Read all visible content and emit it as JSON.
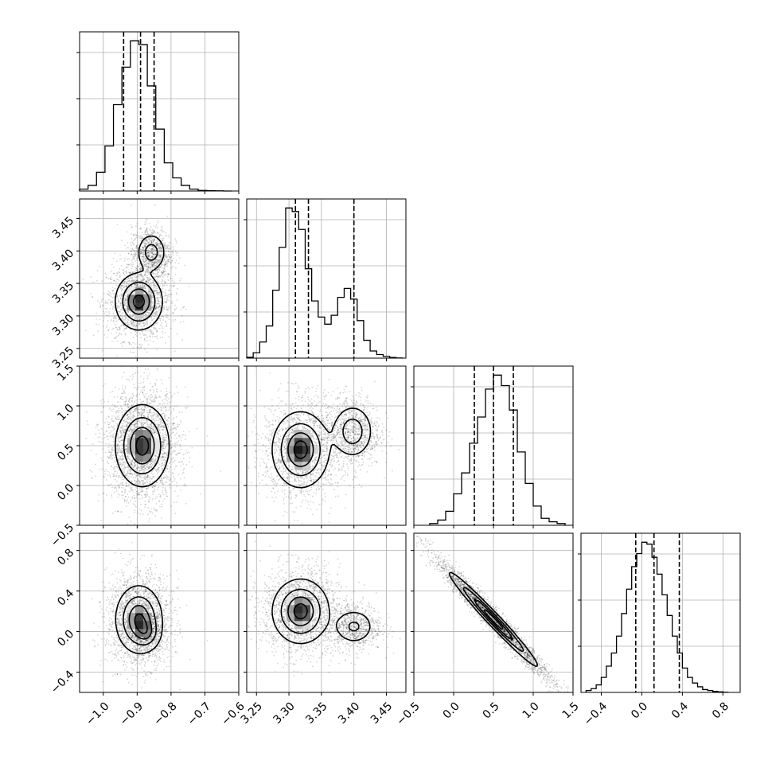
{
  "chart_data": {
    "type": "corner",
    "parameters": [
      {
        "index": 0,
        "range": [
          -1.07,
          -0.6
        ],
        "ticks": [
          -1.0,
          -0.9,
          -0.8,
          -0.7,
          -0.6
        ],
        "tick_labels": [
          "−1.0",
          "−0.9",
          "−0.8",
          "−0.7",
          "−0.6"
        ],
        "quantiles": [
          -0.94,
          -0.89,
          -0.85
        ],
        "histogram": {
          "bin_edges": [
            -1.07,
            -1.045,
            -1.02,
            -0.995,
            -0.97,
            -0.945,
            -0.92,
            -0.895,
            -0.87,
            -0.845,
            -0.82,
            -0.795,
            -0.77,
            -0.745,
            -0.72,
            -0.695,
            -0.67,
            -0.645,
            -0.62
          ],
          "counts": [
            1,
            3,
            10,
            24,
            46,
            66,
            80,
            78,
            56,
            33,
            15,
            7,
            3,
            1,
            0.3,
            0.2,
            0.1,
            0
          ]
        }
      },
      {
        "index": 1,
        "range": [
          3.235,
          3.48
        ],
        "ticks": [
          3.25,
          3.3,
          3.35,
          3.4,
          3.45
        ],
        "tick_labels": [
          "3.25",
          "3.30",
          "3.35",
          "3.40",
          "3.45"
        ],
        "quantiles": [
          3.31,
          3.33,
          3.4
        ],
        "histogram": {
          "bin_edges": [
            3.235,
            3.245,
            3.255,
            3.265,
            3.275,
            3.285,
            3.295,
            3.305,
            3.315,
            3.325,
            3.335,
            3.345,
            3.355,
            3.365,
            3.375,
            3.385,
            3.395,
            3.405,
            3.415,
            3.425,
            3.435,
            3.445,
            3.455,
            3.465,
            3.475
          ],
          "counts": [
            0.5,
            3,
            9,
            18,
            38,
            62,
            84,
            82,
            72,
            50,
            32,
            23,
            19,
            24,
            34,
            39,
            33,
            21,
            10,
            4,
            2,
            1,
            0.4,
            0.1
          ]
        }
      },
      {
        "index": 2,
        "range": [
          -0.5,
          1.5
        ],
        "ticks": [
          -0.5,
          0.0,
          0.5,
          1.0,
          1.5
        ],
        "tick_labels": [
          "−0.5",
          "0.0",
          "0.5",
          "1.0",
          "1.5"
        ],
        "quantiles": [
          0.26,
          0.5,
          0.75
        ],
        "histogram": {
          "bin_edges": [
            -0.3,
            -0.2,
            -0.1,
            0.0,
            0.1,
            0.2,
            0.3,
            0.4,
            0.5,
            0.6,
            0.7,
            0.8,
            0.9,
            1.0,
            1.1,
            1.2,
            1.3,
            1.4
          ],
          "counts": [
            1,
            3,
            8,
            18,
            30,
            47,
            62,
            78,
            86,
            80,
            66,
            42,
            24,
            11,
            4,
            2,
            1
          ]
        }
      },
      {
        "index": 3,
        "range": [
          -0.6,
          0.97
        ],
        "ticks": [
          -0.4,
          0.0,
          0.4,
          0.8
        ],
        "tick_labels": [
          "−0.4",
          "0.0",
          "0.4",
          "0.8"
        ],
        "quantiles": [
          -0.06,
          0.12,
          0.37
        ],
        "histogram": {
          "bin_edges": [
            -0.55,
            -0.5,
            -0.45,
            -0.4,
            -0.35,
            -0.3,
            -0.25,
            -0.2,
            -0.15,
            -0.1,
            -0.05,
            0.0,
            0.05,
            0.1,
            0.15,
            0.2,
            0.25,
            0.3,
            0.35,
            0.4,
            0.45,
            0.5,
            0.55,
            0.6,
            0.65,
            0.7,
            0.75,
            0.8,
            0.85
          ],
          "counts": [
            1,
            2,
            4,
            8,
            14,
            21,
            30,
            42,
            55,
            67,
            74,
            80,
            79,
            72,
            63,
            52,
            41,
            30,
            21,
            13,
            8,
            5,
            3,
            1.5,
            1,
            0.5,
            0.3,
            0.1
          ]
        }
      }
    ],
    "pairs": [
      {
        "row": 1,
        "col": 0,
        "clusters": [
          {
            "center": [
              -0.895,
              3.322
            ],
            "sigma": [
              0.035,
              0.022
            ],
            "weight": 1.0
          },
          {
            "center": [
              -0.858,
              3.398
            ],
            "sigma": [
              0.022,
              0.015
            ],
            "weight": 0.55
          }
        ]
      },
      {
        "row": 2,
        "col": 0,
        "clusters": [
          {
            "center": [
              -0.885,
              0.5
            ],
            "sigma": [
              0.04,
              0.26
            ],
            "weight": 1.0
          }
        ]
      },
      {
        "row": 2,
        "col": 1,
        "clusters": [
          {
            "center": [
              3.318,
              0.45
            ],
            "sigma": [
              0.022,
              0.24
            ],
            "weight": 1.0
          },
          {
            "center": [
              3.398,
              0.68
            ],
            "sigma": [
              0.016,
              0.17
            ],
            "weight": 0.6
          }
        ]
      },
      {
        "row": 3,
        "col": 0,
        "clusters": [
          {
            "center": [
              -0.895,
              0.12
            ],
            "sigma": [
              0.035,
              0.17
            ],
            "weight": 1.0
          },
          {
            "center": [
              -0.87,
              -0.02
            ],
            "sigma": [
              0.02,
              0.08
            ],
            "weight": 0.35
          }
        ]
      },
      {
        "row": 3,
        "col": 1,
        "clusters": [
          {
            "center": [
              3.318,
              0.2
            ],
            "sigma": [
              0.022,
              0.16
            ],
            "weight": 1.0
          },
          {
            "center": [
              3.4,
              0.05
            ],
            "sigma": [
              0.016,
              0.09
            ],
            "weight": 0.45
          }
        ]
      },
      {
        "row": 3,
        "col": 2,
        "clusters": [
          {
            "center": [
              0.5,
              0.12
            ],
            "sigma": [
              0.28,
              0.045
            ],
            "weight": 1.0,
            "slope": -0.82
          }
        ]
      }
    ]
  }
}
